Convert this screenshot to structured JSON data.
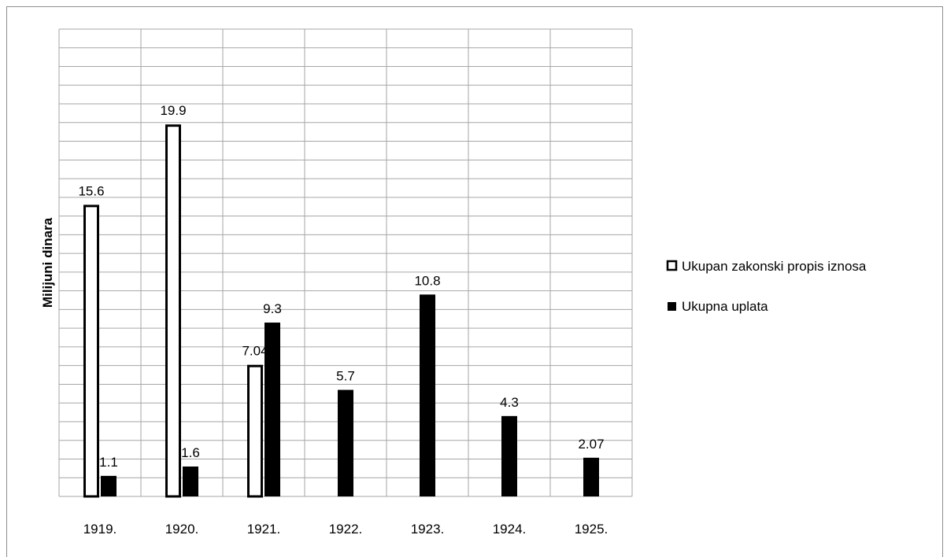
{
  "chart_data": {
    "type": "bar",
    "title": "",
    "xlabel": "",
    "ylabel": "Milijuni dinara",
    "categories": [
      "1919.",
      "1920.",
      "1921.",
      "1922.",
      "1923.",
      "1924.",
      "1925."
    ],
    "series": [
      {
        "name": "Ukupan zakonski propis iznosa",
        "values": [
          15.6,
          19.9,
          7.04,
          null,
          null,
          null,
          null
        ],
        "labels": [
          "15.6",
          "19.9",
          "7.04",
          "",
          "",
          "",
          ""
        ],
        "fill": "#ffffff",
        "stroke": "#000000"
      },
      {
        "name": "Ukupna uplata",
        "values": [
          1.1,
          1.6,
          9.3,
          5.7,
          10.8,
          4.3,
          2.07
        ],
        "labels": [
          "1.1",
          "1.6",
          "9.3",
          "5.7",
          "10.8",
          "4.3",
          "2.07"
        ],
        "fill": "#000000",
        "stroke": "#000000"
      }
    ],
    "ylim": [
      0,
      25
    ],
    "grid": true,
    "legend": "right",
    "colors": {
      "grid": "#a6a6a6",
      "border": "#8c8c8c"
    }
  }
}
